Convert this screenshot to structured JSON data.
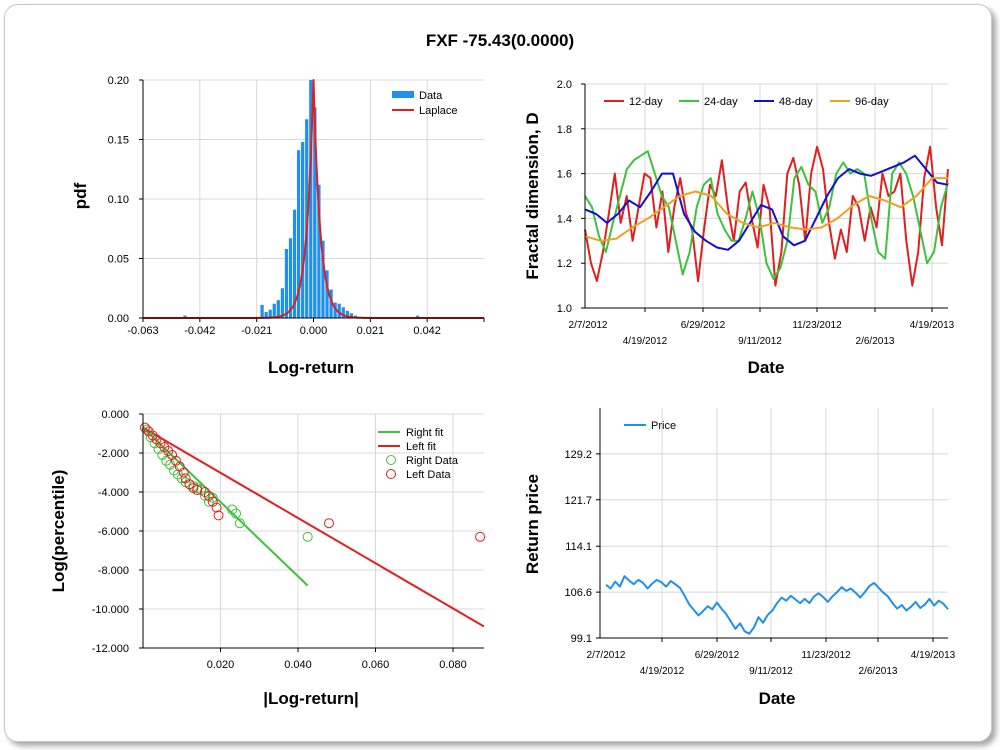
{
  "title": "FXF -75.43(0.0000)",
  "colors": {
    "red": "#e02020",
    "green": "#3cc33c",
    "blue": "#1010d0",
    "orange": "#f0a020",
    "bar": "#2090f0",
    "price": "#2090e8"
  },
  "chart_data": [
    {
      "type": "bar",
      "title": "",
      "xlabel": "Log-return",
      "ylabel": "pdf",
      "xlim": [
        -0.063,
        0.063
      ],
      "ylim": [
        0,
        0.2
      ],
      "xticks": [
        "-0.063",
        "-0.042",
        "-0.021",
        "0.000",
        "0.021",
        "0.042"
      ],
      "xtick_values": [
        -0.063,
        -0.042,
        -0.021,
        0.0,
        0.021,
        0.042
      ],
      "yticks": [
        "0.00",
        "0.05",
        "0.10",
        "0.15",
        "0.20"
      ],
      "ytick_values": [
        0,
        0.05,
        0.1,
        0.15,
        0.2
      ],
      "legend": [
        "Data",
        "Laplace"
      ],
      "legend_position": "top-right",
      "bins": [
        -0.0475,
        -0.019,
        -0.0175,
        -0.016,
        -0.0145,
        -0.013,
        -0.0115,
        -0.01,
        -0.0085,
        -0.007,
        -0.0055,
        -0.004,
        -0.0025,
        -0.001,
        0.0005,
        0.002,
        0.0035,
        0.005,
        0.0065,
        0.008,
        0.0095,
        0.011,
        0.0125,
        0.014,
        0.0155,
        0.017,
        0.0385
      ],
      "values": [
        0.002,
        0.011,
        0.005,
        0.007,
        0.012,
        0.015,
        0.025,
        0.058,
        0.067,
        0.091,
        0.141,
        0.148,
        0.167,
        0.2,
        0.177,
        0.112,
        0.065,
        0.04,
        0.024,
        0.013,
        0.012,
        0.009,
        0.006,
        0.004,
        0.002,
        0.001,
        0.002
      ],
      "laplace": {
        "location": 0.0,
        "scale": 0.0025,
        "peak": 0.2
      },
      "grid": true
    },
    {
      "type": "line",
      "title": "",
      "xlabel": "Date",
      "ylabel": "Fractal dimension, D",
      "ylim": [
        1.0,
        2.0
      ],
      "yticks": [
        "1.0",
        "1.2",
        "1.4",
        "1.6",
        "1.8",
        "2.0"
      ],
      "xticks_top": [
        "2/7/2012",
        "6/29/2012",
        "11/23/2012",
        "4/19/2013"
      ],
      "xticks_bottom": [
        "4/19/2012",
        "9/11/2012",
        "2/6/2013"
      ],
      "series": [
        {
          "name": "12-day",
          "color": "#e02020",
          "values": [
            1.35,
            1.2,
            1.12,
            1.25,
            1.42,
            1.6,
            1.38,
            1.5,
            1.3,
            1.45,
            1.6,
            1.58,
            1.36,
            1.52,
            1.25,
            1.45,
            1.58,
            1.42,
            1.35,
            1.12,
            1.35,
            1.55,
            1.5,
            1.66,
            1.45,
            1.3,
            1.52,
            1.56,
            1.4,
            1.27,
            1.55,
            1.45,
            1.1,
            1.25,
            1.6,
            1.67,
            1.55,
            1.3,
            1.6,
            1.72,
            1.62,
            1.38,
            1.22,
            1.35,
            1.25,
            1.5,
            1.45,
            1.3,
            1.45,
            1.36,
            1.6,
            1.5,
            1.52,
            1.6,
            1.3,
            1.1,
            1.25,
            1.58,
            1.72,
            1.45,
            1.28,
            1.62
          ]
        },
        {
          "name": "24-day",
          "color": "#3cc33c",
          "values": [
            1.5,
            1.45,
            1.32,
            1.25,
            1.38,
            1.5,
            1.62,
            1.66,
            1.68,
            1.7,
            1.6,
            1.5,
            1.45,
            1.3,
            1.15,
            1.25,
            1.45,
            1.55,
            1.58,
            1.42,
            1.35,
            1.3,
            1.3,
            1.4,
            1.52,
            1.4,
            1.2,
            1.13,
            1.18,
            1.3,
            1.58,
            1.63,
            1.55,
            1.52,
            1.38,
            1.45,
            1.6,
            1.65,
            1.6,
            1.62,
            1.6,
            1.4,
            1.25,
            1.22,
            1.6,
            1.65,
            1.6,
            1.5,
            1.35,
            1.2,
            1.25,
            1.45,
            1.56
          ]
        },
        {
          "name": "48-day",
          "color": "#1010d0",
          "values": [
            1.44,
            1.42,
            1.38,
            1.42,
            1.48,
            1.45,
            1.52,
            1.6,
            1.6,
            1.42,
            1.34,
            1.3,
            1.27,
            1.26,
            1.3,
            1.38,
            1.46,
            1.44,
            1.32,
            1.28,
            1.3,
            1.4,
            1.5,
            1.58,
            1.62,
            1.6,
            1.59,
            1.61,
            1.63,
            1.65,
            1.68,
            1.62,
            1.56,
            1.55
          ]
        },
        {
          "name": "96-day",
          "color": "#f0a020",
          "values": [
            1.32,
            1.3,
            1.31,
            1.36,
            1.4,
            1.45,
            1.5,
            1.52,
            1.5,
            1.42,
            1.38,
            1.36,
            1.38,
            1.36,
            1.35,
            1.36,
            1.4,
            1.46,
            1.5,
            1.48,
            1.45,
            1.5,
            1.58,
            1.58
          ]
        }
      ],
      "legend_position": "top",
      "grid": true
    },
    {
      "type": "scatter",
      "title": "",
      "xlabel": "|Log-return|",
      "ylabel": "Log(percentile)",
      "xlim": [
        0,
        0.088
      ],
      "ylim": [
        -12,
        0
      ],
      "xticks": [
        "0.020",
        "0.040",
        "0.060",
        "0.080"
      ],
      "xtick_values": [
        0.02,
        0.04,
        0.06,
        0.08
      ],
      "yticks": [
        "0.000",
        "-2.000",
        "-4.000",
        "-6.000",
        "-8.000",
        "-10.000",
        "-12.000"
      ],
      "ytick_values": [
        0,
        -2,
        -4,
        -6,
        -8,
        -10,
        -12
      ],
      "legend": [
        "Right fit",
        "Left fit",
        "Right Data",
        "Left Data"
      ],
      "legend_position": "top-right",
      "right_fit": {
        "x": [
          0,
          0.0425
        ],
        "y": [
          -0.7,
          -8.8
        ]
      },
      "left_fit": {
        "x": [
          0,
          0.088
        ],
        "y": [
          -0.7,
          -10.9
        ]
      },
      "right_data": {
        "x": [
          0.001,
          0.002,
          0.003,
          0.004,
          0.005,
          0.006,
          0.007,
          0.008,
          0.009,
          0.01,
          0.011,
          0.012,
          0.013,
          0.014,
          0.015,
          0.016,
          0.017,
          0.018,
          0.023,
          0.024,
          0.025,
          0.0425
        ],
        "y": [
          -0.8,
          -1.2,
          -1.5,
          -1.8,
          -2.1,
          -2.4,
          -2.6,
          -2.9,
          -3.1,
          -3.3,
          -3.5,
          -3.6,
          -3.7,
          -3.8,
          -3.9,
          -4.2,
          -4.5,
          -4.3,
          -4.9,
          -5.1,
          -5.6,
          -6.3
        ]
      },
      "left_data": {
        "x": [
          0.0005,
          0.0015,
          0.0025,
          0.0035,
          0.0045,
          0.0055,
          0.0065,
          0.0075,
          0.0085,
          0.0095,
          0.0105,
          0.011,
          0.012,
          0.013,
          0.014,
          0.016,
          0.017,
          0.018,
          0.019,
          0.0195,
          0.048,
          0.087
        ],
        "y": [
          -0.7,
          -0.9,
          -1.1,
          -1.3,
          -1.5,
          -1.7,
          -1.9,
          -2.1,
          -2.4,
          -2.7,
          -3.0,
          -3.3,
          -3.6,
          -3.8,
          -3.9,
          -4.0,
          -4.2,
          -4.5,
          -4.8,
          -5.2,
          -5.6,
          -6.3
        ]
      },
      "grid": true
    },
    {
      "type": "line",
      "title": "",
      "xlabel": "Date",
      "ylabel": "Return price",
      "ylim": [
        99.1,
        136.7
      ],
      "yticks": [
        "99.1",
        "106.6",
        "114.1",
        "121.7",
        "129.2"
      ],
      "ytick_values": [
        99.1,
        106.6,
        114.1,
        121.7,
        129.2
      ],
      "xticks_top": [
        "2/7/2012",
        "6/29/2012",
        "11/23/2012",
        "4/19/2013"
      ],
      "xticks_bottom": [
        "4/19/2012",
        "9/11/2012",
        "2/6/2013"
      ],
      "series": [
        {
          "name": "Price",
          "color": "#2090e8",
          "values": [
            107.8,
            107.2,
            108.3,
            107.5,
            109.2,
            108.5,
            107.9,
            108.6,
            108.1,
            107.2,
            108.0,
            108.6,
            108.2,
            107.5,
            108.4,
            107.9,
            107.3,
            106.0,
            104.6,
            103.7,
            102.8,
            103.5,
            104.3,
            103.8,
            104.9,
            103.9,
            103.0,
            101.8,
            100.6,
            101.5,
            100.2,
            99.8,
            100.8,
            102.5,
            101.6,
            102.9,
            103.6,
            104.8,
            105.7,
            105.2,
            106.0,
            105.4,
            104.8,
            105.5,
            104.8,
            105.9,
            106.4,
            105.8,
            105.0,
            105.9,
            106.6,
            107.4,
            106.8,
            107.2,
            106.5,
            105.7,
            106.6,
            107.6,
            108.1,
            107.3,
            106.5,
            105.9,
            104.8,
            103.9,
            104.5,
            103.6,
            104.2,
            105.0,
            104.0,
            104.6,
            105.5,
            104.4,
            105.2,
            104.7,
            103.8
          ]
        }
      ],
      "legend_position": "top-left",
      "grid": true
    }
  ]
}
